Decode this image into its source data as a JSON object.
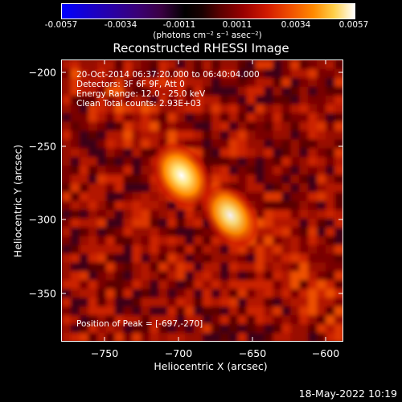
{
  "colorbar": {
    "tick_labels": [
      "-0.0057",
      "-0.0034",
      "-0.0011",
      "0.0011",
      "0.0034",
      "0.0057"
    ],
    "units": "(photons cm⁻² s⁻¹ asec⁻²)"
  },
  "title": "Reconstructed RHESSI Image",
  "info": {
    "time_range": "20-Oct-2014 06:37:20.000 to 06:40:04.000",
    "detectors": "Detectors: 3F 6F 9F, Att 0",
    "energy_range": "Energy Range: 12.0 - 25.0 keV",
    "clean_counts": "Clean     Total counts: 2.93E+03",
    "peak": "Position of Peak = [-697,-270]"
  },
  "chart_data": {
    "type": "heatmap",
    "title": "Reconstructed RHESSI Image",
    "xlabel": "Heliocentric X (arcsec)",
    "ylabel": "Heliocentric Y (arcsec)",
    "x_ticks": [
      -750,
      -700,
      -650,
      -600
    ],
    "y_ticks": [
      -200,
      -250,
      -300,
      -350
    ],
    "x_tick_labels": [
      "−750",
      "−700",
      "−650",
      "−600"
    ],
    "y_tick_labels": [
      "−200",
      "−250",
      "−300",
      "−350"
    ],
    "xlim": [
      -778,
      -588
    ],
    "ylim": [
      -382,
      -192
    ],
    "color_scale": [
      -0.0057,
      0.0057
    ],
    "sources": [
      {
        "x": -697,
        "y": -270,
        "intensity": 1.0,
        "label": "peak"
      },
      {
        "x": -664,
        "y": -297,
        "intensity": 0.85
      }
    ],
    "colors": {
      "low": "#0000ff",
      "zero": "#000000",
      "mid": "#d11a00",
      "high": "#ffffff"
    }
  },
  "timestamp": "18-May-2022 10:19"
}
